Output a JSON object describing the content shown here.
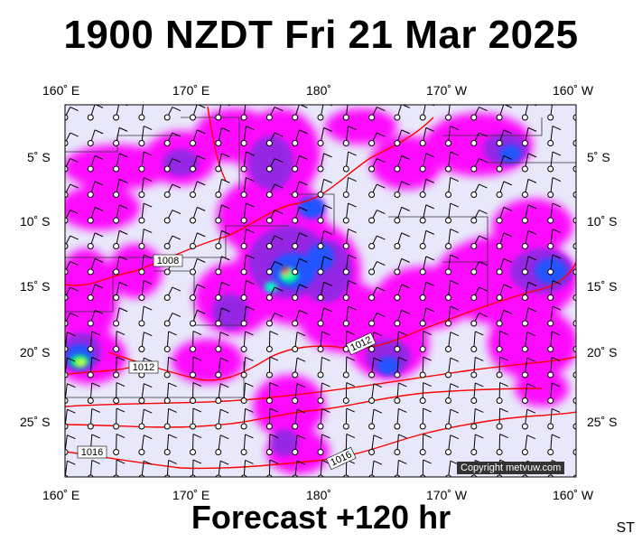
{
  "title": "1900 NZDT Fri 21 Mar 2025",
  "subtitle": "Forecast +120 hr",
  "corner_label": "ST",
  "copyright": "Copyright metvuw.com",
  "top_lon_labels": [
    "160˚ E",
    "170˚ E",
    "180˚",
    "170˚ W",
    "160˚ W"
  ],
  "bottom_lon_labels": [
    "160˚ E",
    "170˚ E",
    "180˚",
    "170˚ W",
    "160˚ W"
  ],
  "lat_labels": [
    "5˚ S",
    "10˚ S",
    "15˚ S",
    "20˚ S",
    "25˚ S"
  ],
  "isobar_labels": [
    "1008",
    "1012",
    "1012",
    "1016",
    "1016"
  ],
  "colors": {
    "land_bg": "#e8e8fa",
    "precip_light": "#ff00ff",
    "precip_mid": "#8800ff",
    "precip_heavy": "#0044ff",
    "precip_extreme": "#00ff88",
    "isobar": "#ff0000"
  }
}
